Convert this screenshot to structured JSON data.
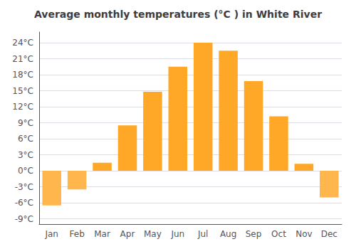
{
  "chart_data": {
    "type": "bar",
    "title": "Average monthly temperatures (°C ) in White River",
    "categories": [
      "Jan",
      "Feb",
      "Mar",
      "Apr",
      "May",
      "Jun",
      "Jul",
      "Aug",
      "Sep",
      "Oct",
      "Nov",
      "Dec"
    ],
    "values": [
      -6.5,
      -3.5,
      1.5,
      8.5,
      14.8,
      19.5,
      24.0,
      22.5,
      16.8,
      10.2,
      1.3,
      -5.0
    ],
    "colors": [
      "#FFB74D",
      "#FFB74D",
      "#FFA726",
      "#FFA726",
      "#FFA726",
      "#FFA726",
      "#FFA726",
      "#FFA726",
      "#FFA726",
      "#FFA726",
      "#FFA726",
      "#FFB74D"
    ],
    "ylim": [
      -10,
      26
    ],
    "yticks": [
      {
        "value": -9,
        "label": "-9°C"
      },
      {
        "value": -6,
        "label": "-6°C"
      },
      {
        "value": -3,
        "label": "-3°C"
      },
      {
        "value": 0,
        "label": "0°C"
      },
      {
        "value": 3,
        "label": "3°C"
      },
      {
        "value": 6,
        "label": "6°C"
      },
      {
        "value": 9,
        "label": "9°C"
      },
      {
        "value": 12,
        "label": "12°C"
      },
      {
        "value": 15,
        "label": "15°C"
      },
      {
        "value": 18,
        "label": "18°C"
      },
      {
        "value": 21,
        "label": "21°C"
      },
      {
        "value": 24,
        "label": "24°C"
      }
    ],
    "grid": true
  }
}
